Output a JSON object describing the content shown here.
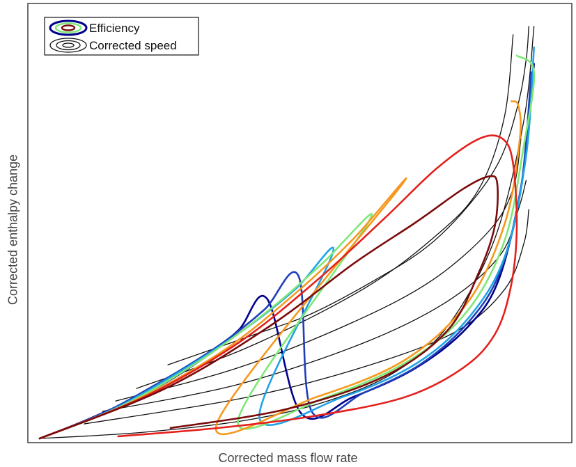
{
  "chart_data": {
    "type": "line",
    "title": "",
    "xlabel": "Corrected mass flow rate",
    "ylabel": "Corrected enthalpy change",
    "axis_ticks": "none",
    "grid": false,
    "legend": {
      "placement": "top-left",
      "entries": [
        {
          "label": "Efficiency",
          "symbol": "colored concentric contour ellipses (blue outer, green, dark red inner)"
        },
        {
          "label": "Corrected speed",
          "symbol": "black concentric contour ellipses"
        }
      ]
    },
    "efficiency_colors": [
      "#00008b",
      "#1f3fb8",
      "#1fa3e6",
      "#7ee876",
      "#f5981e",
      "#e4201c",
      "#7a0b0b"
    ],
    "speed_color": "#111111",
    "x_range": [
      0,
      1
    ],
    "y_range": [
      0,
      1
    ],
    "series": [
      {
        "group": "speed",
        "x": [
          0.0,
          0.2,
          0.4,
          0.55,
          0.68,
          0.78,
          0.87,
          0.925,
          0.945
        ],
        "y": [
          0.0,
          0.015,
          0.045,
          0.09,
          0.16,
          0.27,
          0.48,
          0.76,
          0.99
        ]
      },
      {
        "group": "speed",
        "x": [
          0.245,
          0.4,
          0.52,
          0.64,
          0.74,
          0.82,
          0.88,
          0.914,
          0.93,
          0.935
        ],
        "y": [
          0.177,
          0.245,
          0.3,
          0.38,
          0.46,
          0.56,
          0.67,
          0.8,
          0.91,
          0.99
        ]
      },
      {
        "group": "speed",
        "x": [
          0.185,
          0.4,
          0.62,
          0.76,
          0.84,
          0.888,
          0.905
        ],
        "y": [
          0.12,
          0.22,
          0.36,
          0.49,
          0.6,
          0.77,
          0.97
        ]
      },
      {
        "group": "speed",
        "x": [
          0.145,
          0.38,
          0.6,
          0.75,
          0.86,
          0.905,
          0.92
        ],
        "y": [
          0.09,
          0.17,
          0.28,
          0.38,
          0.5,
          0.6,
          0.72
        ]
      },
      {
        "group": "speed",
        "x": [
          0.12,
          0.38,
          0.62,
          0.78,
          0.88,
          0.915,
          0.93
        ],
        "y": [
          0.065,
          0.13,
          0.23,
          0.33,
          0.44,
          0.55,
          0.62
        ]
      },
      {
        "group": "speed",
        "x": [
          0.085,
          0.4,
          0.64,
          0.8,
          0.89,
          0.926,
          0.935
        ],
        "y": [
          0.035,
          0.1,
          0.18,
          0.26,
          0.36,
          0.47,
          0.55
        ]
      },
      {
        "group": "efficiency",
        "color": "#00008b",
        "x": [
          0.0,
          0.1,
          0.22,
          0.31,
          0.38,
          0.435,
          0.5,
          0.6,
          0.72,
          0.82,
          0.88,
          0.925,
          0.945
        ],
        "y": [
          0.0,
          0.05,
          0.12,
          0.19,
          0.26,
          0.335,
          0.06,
          0.1,
          0.17,
          0.27,
          0.39,
          0.64,
          0.9
        ]
      },
      {
        "group": "efficiency",
        "color": "#1f3fb8",
        "x": [
          0.0,
          0.12,
          0.25,
          0.35,
          0.43,
          0.495,
          0.52,
          0.62,
          0.73,
          0.82,
          0.88,
          0.92,
          0.94
        ],
        "y": [
          0.0,
          0.06,
          0.15,
          0.23,
          0.31,
          0.39,
          0.065,
          0.11,
          0.18,
          0.28,
          0.4,
          0.6,
          0.88
        ]
      },
      {
        "group": "efficiency",
        "color": "#1fa3e6",
        "x": [
          0.0,
          0.14,
          0.28,
          0.4,
          0.49,
          0.56,
          0.42,
          0.58,
          0.72,
          0.82,
          0.89,
          0.93,
          0.945
        ],
        "y": [
          0.0,
          0.07,
          0.17,
          0.27,
          0.36,
          0.445,
          0.052,
          0.1,
          0.18,
          0.29,
          0.44,
          0.68,
          0.94
        ]
      },
      {
        "group": "efficiency",
        "color": "#7ee876",
        "x": [
          0.0,
          0.16,
          0.31,
          0.44,
          0.54,
          0.63,
          0.38,
          0.55,
          0.71,
          0.82,
          0.89,
          0.925,
          0.945,
          0.912
        ],
        "y": [
          0.0,
          0.08,
          0.19,
          0.31,
          0.42,
          0.523,
          0.048,
          0.1,
          0.19,
          0.31,
          0.48,
          0.7,
          0.88,
          0.92
        ]
      },
      {
        "group": "efficiency",
        "color": "#f5981e",
        "x": [
          0.0,
          0.18,
          0.35,
          0.49,
          0.6,
          0.69,
          0.34,
          0.53,
          0.7,
          0.82,
          0.89,
          0.918,
          0.915,
          0.902
        ],
        "y": [
          0.0,
          0.09,
          0.21,
          0.35,
          0.48,
          0.606,
          0.04,
          0.1,
          0.19,
          0.33,
          0.52,
          0.72,
          0.8,
          0.81
        ]
      },
      {
        "group": "efficiency",
        "color": "#e4201c",
        "x": [
          0.0,
          0.2,
          0.38,
          0.53,
          0.66,
          0.76,
          0.84,
          0.885,
          0.905,
          0.912,
          0.9,
          0.87,
          0.81,
          0.7,
          0.53,
          0.34,
          0.15
        ],
        "y": [
          0.0,
          0.1,
          0.23,
          0.38,
          0.53,
          0.65,
          0.72,
          0.72,
          0.66,
          0.5,
          0.36,
          0.25,
          0.17,
          0.1,
          0.055,
          0.025,
          0.005
        ]
      },
      {
        "group": "efficiency",
        "color": "#7a0b0b",
        "x": [
          0.0,
          0.24,
          0.44,
          0.6,
          0.72,
          0.81,
          0.86,
          0.875,
          0.87,
          0.84,
          0.78,
          0.66,
          0.47,
          0.25
        ],
        "y": [
          0.0,
          0.12,
          0.27,
          0.42,
          0.52,
          0.6,
          0.63,
          0.61,
          0.51,
          0.4,
          0.26,
          0.15,
          0.07,
          0.025
        ]
      }
    ]
  }
}
